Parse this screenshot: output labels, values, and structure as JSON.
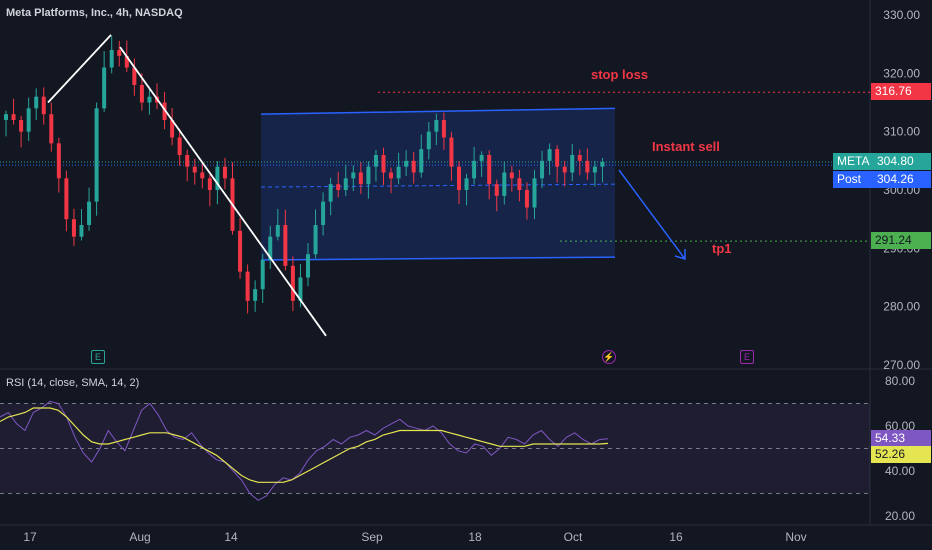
{
  "header": {
    "title": "Meta Platforms, Inc., 4h, NASDAQ"
  },
  "rsi_panel": {
    "title": "RSI (14, close, SMA, 14, 2)"
  },
  "annotations": {
    "stop_loss": "stop loss",
    "instant_sell": "Instant sell",
    "tp1": "tp1"
  },
  "price_axis": {
    "ticks": [
      "330.00",
      "320.00",
      "310.00",
      "300.00",
      "290.00",
      "280.00",
      "270.00"
    ]
  },
  "rsi_axis": {
    "ticks": [
      "80.00",
      "60.00",
      "40.00",
      "20.00"
    ]
  },
  "time_axis": {
    "labels": [
      "17",
      "Aug",
      "14",
      "Sep",
      "18",
      "Oct",
      "16",
      "Nov"
    ]
  },
  "badges": {
    "stop_loss_price": "316.76",
    "meta_label": "META",
    "meta_price": "304.80",
    "post_label": "Post",
    "post_price": "304.26",
    "tp1_price": "291.24",
    "rsi_value": "54.33",
    "rsi_sma_value": "52.26"
  },
  "events": {
    "earnings_1": "E",
    "dividend": "⚡",
    "earnings_2": "E"
  },
  "colors": {
    "background": "#131722",
    "bull": "#26a69a",
    "bear": "#f23645",
    "channel": "#2962ff",
    "stop_loss": "#f23645",
    "tp1": "#4caf50",
    "rsi": "#7e57c2",
    "rsi_sma": "#e5e552",
    "meta_badge": "#26a69a",
    "post_badge": "#2962ff"
  },
  "chart_data": [
    {
      "type": "candlestick",
      "title": "Meta Platforms, Inc., 4h, NASDAQ",
      "ylim": [
        270,
        330
      ],
      "x_labels": [
        "17",
        "Aug",
        "14",
        "Sep",
        "18",
        "Oct",
        "16",
        "Nov"
      ],
      "levels": {
        "stop_loss": 316.76,
        "last": 304.8,
        "post": 304.26,
        "tp1": 291.24
      },
      "channel": {
        "upper": [
          313.0,
          314.0
        ],
        "lower": [
          288.0,
          288.5
        ],
        "mid": 300.5
      },
      "trend_lines": [
        {
          "from": 315.0,
          "to": 326.6
        },
        {
          "from": 324.5,
          "to": 275.0
        }
      ],
      "price_path": [
        313,
        312,
        310,
        314,
        316,
        313,
        308,
        302,
        295,
        292,
        294,
        298,
        314,
        321,
        324,
        323,
        321,
        318,
        315,
        316,
        315,
        312,
        309,
        306,
        304,
        303,
        302,
        300,
        304,
        302,
        293,
        286,
        281,
        283,
        288,
        292,
        294,
        287,
        281,
        285,
        289,
        294,
        298,
        301,
        300,
        302,
        303,
        301,
        304,
        306,
        303,
        302,
        304,
        305,
        303,
        307,
        310,
        312,
        309,
        304,
        300,
        302,
        305,
        306,
        301,
        299,
        303,
        302,
        300,
        297,
        302,
        305,
        307,
        304,
        303,
        306,
        305,
        303,
        304,
        304.8
      ]
    },
    {
      "type": "line",
      "title": "RSI (14, close, SMA, 14, 2)",
      "ylim": [
        20,
        80
      ],
      "bands": [
        70,
        50,
        30
      ],
      "series": [
        {
          "name": "RSI",
          "values": [
            64,
            66,
            61,
            58,
            66,
            68,
            71,
            70,
            64,
            55,
            48,
            44,
            50,
            58,
            53,
            49,
            58,
            67,
            70,
            65,
            58,
            55,
            54,
            57,
            52,
            48,
            45,
            44,
            40,
            36,
            30,
            27,
            29,
            34,
            37,
            36,
            39,
            45,
            49,
            51,
            54,
            52,
            55,
            56,
            58,
            56,
            59,
            61,
            63,
            60,
            59,
            58,
            60,
            57,
            52,
            49,
            48,
            52,
            51,
            47,
            50,
            55,
            54,
            52,
            56,
            58,
            54,
            51,
            55,
            57,
            54,
            52,
            54,
            54.33
          ]
        },
        {
          "name": "SMA",
          "values": [
            62,
            64,
            65,
            66,
            68,
            68,
            68,
            67,
            64,
            60,
            56,
            53,
            52,
            52,
            53,
            54,
            55,
            56,
            57,
            57,
            57,
            56,
            55,
            53,
            51,
            49,
            47,
            44,
            41,
            38,
            36,
            35,
            35,
            35,
            35,
            36,
            38,
            40,
            42,
            44,
            46,
            48,
            50,
            51,
            53,
            54,
            56,
            57,
            58,
            58,
            58,
            58,
            58,
            58,
            57,
            56,
            55,
            54,
            53,
            52,
            51,
            51,
            51,
            51,
            52,
            52,
            52,
            52,
            52,
            52,
            52,
            52,
            52,
            52.26
          ]
        }
      ]
    }
  ]
}
